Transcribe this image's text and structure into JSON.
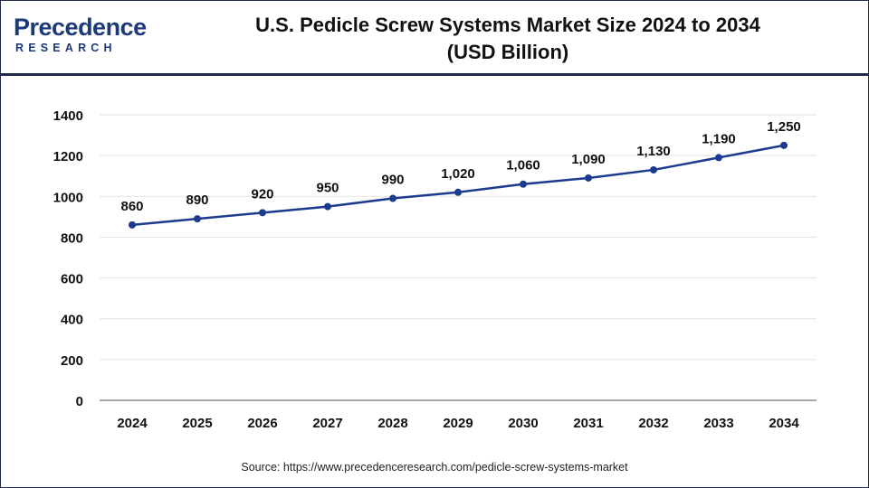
{
  "brand": {
    "name_main": "Precedence",
    "name_sub": "RESEARCH"
  },
  "header": {
    "title_line1": "U.S. Pedicle Screw Systems Market Size 2024 to 2034",
    "title_line2": "(USD Billion)"
  },
  "source": "Source: https://www.precedenceresearch.com/pedicle-screw-systems-market",
  "colors": {
    "line": "#1c3a8e",
    "marker": "#1c3a8e",
    "axis": "#888888",
    "grid": "#e3e3e3",
    "brand": "#1c3a7a"
  },
  "chart_data": {
    "type": "line",
    "title": "U.S. Pedicle Screw Systems Market Size 2024 to 2034 (USD Billion)",
    "xlabel": "",
    "ylabel": "",
    "categories": [
      "2024",
      "2025",
      "2026",
      "2027",
      "2028",
      "2029",
      "2030",
      "2031",
      "2032",
      "2033",
      "2034"
    ],
    "values": [
      860,
      890,
      920,
      950,
      990,
      1020,
      1060,
      1090,
      1130,
      1190,
      1250
    ],
    "data_labels": [
      "860",
      "890",
      "920",
      "950",
      "990",
      "1,020",
      "1,060",
      "1,090",
      "1,130",
      "1,190",
      "1,250"
    ],
    "ylim": [
      0,
      1400
    ],
    "yticks": [
      0,
      200,
      400,
      600,
      800,
      1000,
      1200,
      1400
    ],
    "grid": true,
    "legend": "none"
  }
}
